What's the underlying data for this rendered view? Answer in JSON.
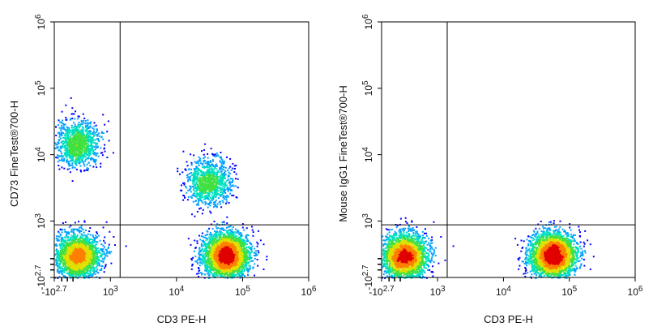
{
  "chart_data": [
    {
      "type": "scatter",
      "title": "",
      "xlabel": "CD3 PE-H",
      "ylabel": "CD73 FineTest®700-H",
      "x_scale": "biexponential",
      "y_scale": "biexponential",
      "xlim": [
        -500,
        1000000
      ],
      "ylim": [
        -500,
        1000000
      ],
      "x_ticks": [
        {
          "base": "-10",
          "exp": "2.7",
          "value": -500
        },
        {
          "base": "10",
          "exp": "3",
          "value": 1000
        },
        {
          "base": "10",
          "exp": "4",
          "value": 10000
        },
        {
          "base": "10",
          "exp": "5",
          "value": 100000
        },
        {
          "base": "10",
          "exp": "6",
          "value": 1000000
        }
      ],
      "y_ticks": [
        {
          "base": "-10",
          "exp": "2.7",
          "value": -500
        },
        {
          "base": "10",
          "exp": "3",
          "value": 1000
        },
        {
          "base": "10",
          "exp": "4",
          "value": 10000
        },
        {
          "base": "10",
          "exp": "5",
          "value": 100000
        },
        {
          "base": "10",
          "exp": "6",
          "value": 1000000
        }
      ],
      "gate": {
        "x": 1400,
        "y": 900
      },
      "populations": [
        {
          "x": 100,
          "y": 15000,
          "events": 1100
        },
        {
          "x": 100,
          "y": 80,
          "events": 2200
        },
        {
          "x": 30000,
          "y": 4000,
          "events": 1000
        },
        {
          "x": 55000,
          "y": 100,
          "events": 3200
        }
      ]
    },
    {
      "type": "scatter",
      "title": "",
      "xlabel": "CD3 PE-H",
      "ylabel": "Mouse IgG1 FineTest®700-H",
      "x_scale": "biexponential",
      "y_scale": "biexponential",
      "xlim": [
        -500,
        1000000
      ],
      "ylim": [
        -500,
        1000000
      ],
      "x_ticks": [
        {
          "base": "-10",
          "exp": "2.7",
          "value": -500
        },
        {
          "base": "10",
          "exp": "3",
          "value": 1000
        },
        {
          "base": "10",
          "exp": "4",
          "value": 10000
        },
        {
          "base": "10",
          "exp": "5",
          "value": 100000
        },
        {
          "base": "10",
          "exp": "6",
          "value": 1000000
        }
      ],
      "y_ticks": [
        {
          "base": "-10",
          "exp": "2.7",
          "value": -500
        },
        {
          "base": "10",
          "exp": "3",
          "value": 1000
        },
        {
          "base": "10",
          "exp": "4",
          "value": 10000
        },
        {
          "base": "10",
          "exp": "5",
          "value": 100000
        },
        {
          "base": "10",
          "exp": "6",
          "value": 1000000
        }
      ],
      "gate": {
        "x": 1400,
        "y": 900
      },
      "populations": [
        {
          "x": 100,
          "y": 80,
          "events": 2600
        },
        {
          "x": 55000,
          "y": 100,
          "events": 3000
        }
      ]
    }
  ],
  "colormap": [
    "#0000ff",
    "#00a0ff",
    "#00e0c0",
    "#40e040",
    "#e0e000",
    "#ff8000",
    "#e00000"
  ]
}
